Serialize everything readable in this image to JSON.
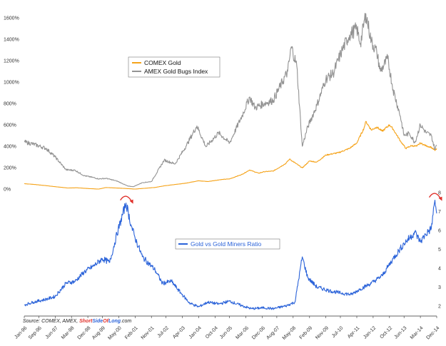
{
  "chart_data": [
    {
      "type": "line",
      "legend_position": "upper-left",
      "legend_box": "bordered",
      "y_axis_side": "left",
      "ylim": [
        0,
        1700
      ],
      "y_ticks": [
        {
          "value": 0,
          "label": "0%"
        },
        {
          "value": 200,
          "label": "200%"
        },
        {
          "value": 400,
          "label": "400%"
        },
        {
          "value": 600,
          "label": "600%"
        },
        {
          "value": 800,
          "label": "800%"
        },
        {
          "value": 1000,
          "label": "1000%"
        },
        {
          "value": 1200,
          "label": "1200%"
        },
        {
          "value": 1400,
          "label": "1400%"
        },
        {
          "value": 1600,
          "label": "1600%"
        }
      ],
      "series": [
        {
          "name": "COMEX Gold",
          "color": "#f5a31a",
          "points": [
            [
              "1996-01",
              50
            ],
            [
              "1996-06",
              44
            ],
            [
              "1997-01",
              32
            ],
            [
              "1997-06",
              22
            ],
            [
              "1998-01",
              10
            ],
            [
              "1998-06",
              12
            ],
            [
              "1999-01",
              4
            ],
            [
              "1999-06",
              0
            ],
            [
              "1999-10",
              14
            ],
            [
              "2000-06",
              8
            ],
            [
              "2001-02",
              0
            ],
            [
              "2001-08",
              8
            ],
            [
              "2002-01",
              15
            ],
            [
              "2002-06",
              30
            ],
            [
              "2003-01",
              45
            ],
            [
              "2003-06",
              55
            ],
            [
              "2004-01",
              78
            ],
            [
              "2004-06",
              70
            ],
            [
              "2005-01",
              88
            ],
            [
              "2005-06",
              95
            ],
            [
              "2006-01",
              138
            ],
            [
              "2006-05",
              178
            ],
            [
              "2006-10",
              148
            ],
            [
              "2007-01",
              162
            ],
            [
              "2007-06",
              168
            ],
            [
              "2008-01",
              240
            ],
            [
              "2008-03",
              280
            ],
            [
              "2008-10",
              198
            ],
            [
              "2009-02",
              262
            ],
            [
              "2009-06",
              252
            ],
            [
              "2009-11",
              318
            ],
            [
              "2010-06",
              340
            ],
            [
              "2010-12",
              380
            ],
            [
              "2011-04",
              430
            ],
            [
              "2011-08",
              570
            ],
            [
              "2011-09",
              632
            ],
            [
              "2011-12",
              552
            ],
            [
              "2012-03",
              580
            ],
            [
              "2012-06",
              540
            ],
            [
              "2012-10",
              600
            ],
            [
              "2012-12",
              560
            ],
            [
              "2013-04",
              450
            ],
            [
              "2013-07",
              380
            ],
            [
              "2013-10",
              405
            ],
            [
              "2014-01",
              400
            ],
            [
              "2014-03",
              430
            ],
            [
              "2014-06",
              405
            ],
            [
              "2014-09",
              390
            ],
            [
              "2014-11",
              360
            ],
            [
              "2014-12",
              378
            ]
          ]
        },
        {
          "name": "AMEX Gold Bugs Index",
          "color": "#939393",
          "points": [
            [
              "1996-01",
              440
            ],
            [
              "1996-06",
              420
            ],
            [
              "1997-01",
              380
            ],
            [
              "1997-06",
              300
            ],
            [
              "1997-12",
              180
            ],
            [
              "1998-05",
              175
            ],
            [
              "1998-10",
              125
            ],
            [
              "1999-03",
              108
            ],
            [
              "1999-06",
              95
            ],
            [
              "1999-10",
              100
            ],
            [
              "2000-04",
              75
            ],
            [
              "2000-10",
              28
            ],
            [
              "2001-01",
              22
            ],
            [
              "2001-06",
              60
            ],
            [
              "2001-11",
              70
            ],
            [
              "2002-06",
              270
            ],
            [
              "2002-12",
              235
            ],
            [
              "2003-06",
              400
            ],
            [
              "2003-12",
              590
            ],
            [
              "2004-05",
              395
            ],
            [
              "2004-12",
              525
            ],
            [
              "2005-06",
              430
            ],
            [
              "2006-01",
              690
            ],
            [
              "2006-05",
              860
            ],
            [
              "2006-08",
              760
            ],
            [
              "2007-01",
              800
            ],
            [
              "2007-06",
              830
            ],
            [
              "2008-02",
              1100
            ],
            [
              "2008-04",
              1330
            ],
            [
              "2008-07",
              1150
            ],
            [
              "2008-10",
              400
            ],
            [
              "2009-01",
              580
            ],
            [
              "2009-06",
              780
            ],
            [
              "2009-11",
              1030
            ],
            [
              "2010-03",
              1080
            ],
            [
              "2010-08",
              1300
            ],
            [
              "2010-12",
              1440
            ],
            [
              "2011-04",
              1500
            ],
            [
              "2011-06",
              1360
            ],
            [
              "2011-09",
              1640
            ],
            [
              "2011-12",
              1380
            ],
            [
              "2012-03",
              1280
            ],
            [
              "2012-05",
              1100
            ],
            [
              "2012-09",
              1220
            ],
            [
              "2012-12",
              930
            ],
            [
              "2013-04",
              680
            ],
            [
              "2013-06",
              500
            ],
            [
              "2013-09",
              520
            ],
            [
              "2013-12",
              435
            ],
            [
              "2014-03",
              600
            ],
            [
              "2014-06",
              530
            ],
            [
              "2014-09",
              500
            ],
            [
              "2014-11",
              370
            ],
            [
              "2014-12",
              410
            ]
          ]
        }
      ]
    },
    {
      "type": "line",
      "legend_position": "center-left",
      "legend_box": "bordered",
      "y_axis_side": "right",
      "ylim": [
        1.5,
        8
      ],
      "y_ticks": [
        {
          "value": 2,
          "label": "2"
        },
        {
          "value": 3,
          "label": "3"
        },
        {
          "value": 4,
          "label": "4"
        },
        {
          "value": 5,
          "label": "5"
        },
        {
          "value": 6,
          "label": "6"
        },
        {
          "value": 7,
          "label": "7"
        },
        {
          "value": 8,
          "label": "8"
        }
      ],
      "series": [
        {
          "name": "Gold vs Gold Miners Ratio",
          "color": "#2b63d9",
          "points": [
            [
              "1996-01",
              2.05
            ],
            [
              "1996-06",
              2.2
            ],
            [
              "1997-01",
              2.35
            ],
            [
              "1997-06",
              2.5
            ],
            [
              "1997-12",
              3.2
            ],
            [
              "1998-05",
              3.3
            ],
            [
              "1998-10",
              3.8
            ],
            [
              "1999-03",
              4.1
            ],
            [
              "1999-08",
              4.5
            ],
            [
              "1999-12",
              4.3
            ],
            [
              "2000-04",
              5.8
            ],
            [
              "2000-09",
              7.45
            ],
            [
              "2000-12",
              6.2
            ],
            [
              "2001-02",
              5.6
            ],
            [
              "2001-06",
              4.6
            ],
            [
              "2001-10",
              4.2
            ],
            [
              "2002-01",
              3.9
            ],
            [
              "2002-05",
              3.2
            ],
            [
              "2002-10",
              3.3
            ],
            [
              "2003-03",
              2.7
            ],
            [
              "2003-08",
              2.15
            ],
            [
              "2004-01",
              1.95
            ],
            [
              "2004-06",
              2.2
            ],
            [
              "2004-12",
              2.1
            ],
            [
              "2005-06",
              2.25
            ],
            [
              "2006-01",
              2.0
            ],
            [
              "2006-06",
              1.85
            ],
            [
              "2007-01",
              1.9
            ],
            [
              "2007-06",
              1.85
            ],
            [
              "2008-01",
              2.0
            ],
            [
              "2008-06",
              2.2
            ],
            [
              "2008-10",
              4.6
            ],
            [
              "2009-01",
              3.5
            ],
            [
              "2009-06",
              3.0
            ],
            [
              "2010-01",
              2.8
            ],
            [
              "2010-06",
              2.7
            ],
            [
              "2011-01",
              2.6
            ],
            [
              "2011-06",
              2.9
            ],
            [
              "2011-12",
              3.2
            ],
            [
              "2012-06",
              3.6
            ],
            [
              "2012-12",
              4.5
            ],
            [
              "2013-06",
              5.3
            ],
            [
              "2013-12",
              5.9
            ],
            [
              "2014-03",
              5.4
            ],
            [
              "2014-06",
              5.8
            ],
            [
              "2014-09",
              6.1
            ],
            [
              "2014-11",
              7.6
            ],
            [
              "2014-12",
              6.9
            ]
          ]
        }
      ]
    }
  ],
  "x_axis": {
    "date_range": [
      "1996-01",
      "2014-12"
    ],
    "ticks": [
      {
        "date": "1996-01",
        "label": "Jan-96"
      },
      {
        "date": "1996-09",
        "label": "Sep-96"
      },
      {
        "date": "1997-06",
        "label": "Jun-97"
      },
      {
        "date": "1998-03",
        "label": "Mar-98"
      },
      {
        "date": "1998-12",
        "label": "Dec-98"
      },
      {
        "date": "1999-08",
        "label": "Aug-99"
      },
      {
        "date": "2000-05",
        "label": "May-00"
      },
      {
        "date": "2001-02",
        "label": "Feb-01"
      },
      {
        "date": "2001-11",
        "label": "Nov-01"
      },
      {
        "date": "2002-07",
        "label": "Jul-02"
      },
      {
        "date": "2003-04",
        "label": "Apr-03"
      },
      {
        "date": "2004-01",
        "label": "Jan-04"
      },
      {
        "date": "2004-10",
        "label": "Oct-04"
      },
      {
        "date": "2005-06",
        "label": "Jun-05"
      },
      {
        "date": "2006-03",
        "label": "Mar-06"
      },
      {
        "date": "2006-12",
        "label": "Dec-06"
      },
      {
        "date": "2007-08",
        "label": "Aug-07"
      },
      {
        "date": "2008-05",
        "label": "May-08"
      },
      {
        "date": "2009-02",
        "label": "Feb-09"
      },
      {
        "date": "2009-11",
        "label": "Nov-09"
      },
      {
        "date": "2010-07",
        "label": "Jul-10"
      },
      {
        "date": "2011-04",
        "label": "Apr-11"
      },
      {
        "date": "2012-01",
        "label": "Jan-12"
      },
      {
        "date": "2012-10",
        "label": "Oct-12"
      },
      {
        "date": "2013-06",
        "label": "Jun-13"
      },
      {
        "date": "2014-03",
        "label": "Mar-14"
      },
      {
        "date": "2014-12",
        "label": "Dec-14"
      }
    ]
  },
  "annotations": [
    {
      "type": "curved-arrow",
      "color": "#e0302a",
      "at": "2000-09",
      "chart": 1
    },
    {
      "type": "curved-arrow",
      "color": "#e0302a",
      "at": "2014-11",
      "chart": 1
    }
  ],
  "source": {
    "prefix": "Source: COMEX, AMEX, ",
    "brand_short": "Short",
    "brand_side": "Side",
    "brand_of": "Of",
    "brand_long": "Long",
    "brand_com": ".com",
    "brand_color_short": "#e0302a",
    "brand_color_side": "#2b63d9",
    "brand_color_of": "#e0302a",
    "brand_color_long": "#2b63d9"
  }
}
